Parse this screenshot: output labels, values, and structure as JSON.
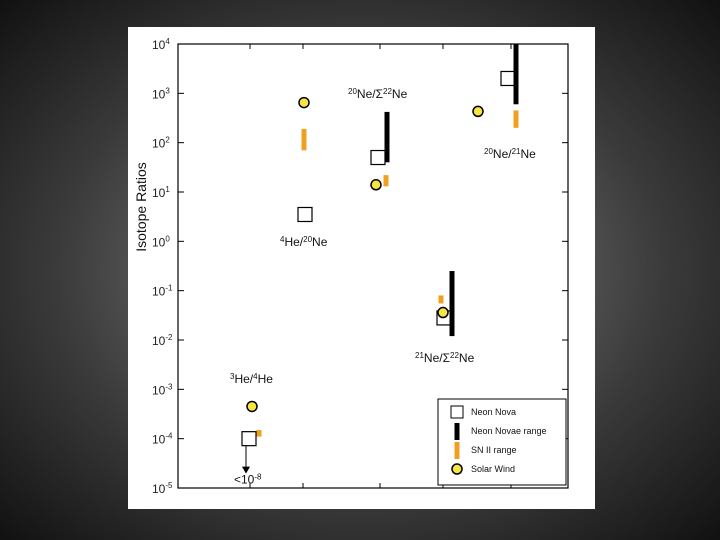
{
  "chart_data": {
    "type": "scatter",
    "ylabel": "Isotope Ratios",
    "yscale": "log",
    "ylim": [
      1e-05,
      10000.0
    ],
    "y_ticks": [
      {
        "base": "10",
        "exp": "4"
      },
      {
        "base": "10",
        "exp": "3"
      },
      {
        "base": "10",
        "exp": "2"
      },
      {
        "base": "10",
        "exp": "1"
      },
      {
        "base": "10",
        "exp": "0"
      },
      {
        "base": "10",
        "exp": "-1"
      },
      {
        "base": "10",
        "exp": "-2"
      },
      {
        "base": "10",
        "exp": "-3"
      },
      {
        "base": "10",
        "exp": "-4"
      },
      {
        "base": "10",
        "exp": "-5"
      }
    ],
    "groups": [
      {
        "name_pre": "3",
        "name_a": "He/",
        "name_sup": "4",
        "name_b": "He",
        "nova": 0.0001,
        "nova_upper_limit_text": "<10",
        "nova_upper_limit_exp": "-8",
        "solar_wind": 0.00045,
        "sn_ii_range": [
          0.00011,
          0.00015
        ]
      },
      {
        "name_pre": "4",
        "name_a": "He/",
        "name_sup": "20",
        "name_b": "Ne",
        "nova": 3.5,
        "solar_wind": 650,
        "sn_ii_range": [
          70,
          190
        ]
      },
      {
        "name_pre": "20",
        "name_a": "Ne/Σ",
        "name_sup": "22",
        "name_b": "Ne",
        "nova": 50,
        "solar_wind": 14,
        "sn_ii_range": [
          13,
          22
        ],
        "novae_range": [
          40,
          420
        ]
      },
      {
        "name_pre": "20",
        "name_a": "Ne/",
        "name_sup": "21",
        "name_b": "Ne",
        "nova": 2000,
        "solar_wind": 430,
        "sn_ii_range": [
          200,
          450
        ],
        "novae_range": [
          600,
          10000
        ]
      },
      {
        "name_pre": "21",
        "name_a": "Ne/Σ",
        "name_sup": "22",
        "name_b": "Ne",
        "nova": 0.028,
        "solar_wind": 0.036,
        "sn_ii_range": [
          0.055,
          0.08
        ],
        "novae_range": [
          0.012,
          0.25
        ]
      }
    ],
    "legend": {
      "placement": "bottom-right",
      "items": [
        {
          "marker": "square",
          "label": "Neon Nova"
        },
        {
          "marker": "bar",
          "label": "Neon Novae range"
        },
        {
          "marker": "orange-bar",
          "label": "SN II range"
        },
        {
          "marker": "circle",
          "label": "Solar Wind"
        }
      ]
    },
    "colors": {
      "nova": "#000000",
      "novae_range": "#000000",
      "sn_ii": "#f0a020",
      "solar_wind": "#f5e642"
    }
  }
}
